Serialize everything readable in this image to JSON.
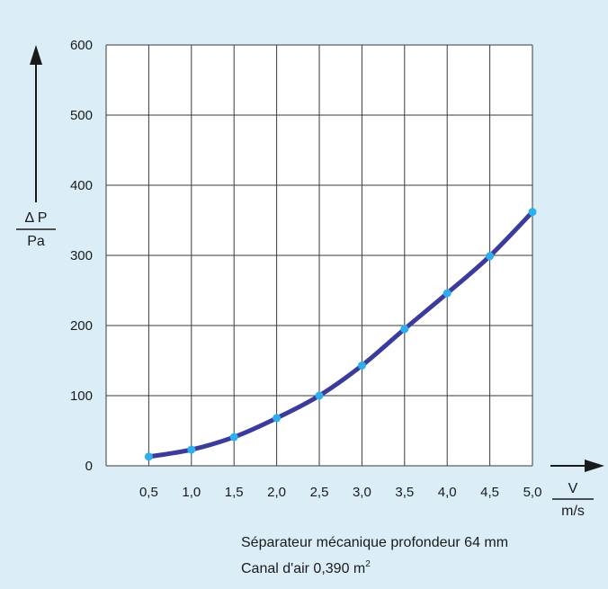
{
  "chart_data": {
    "type": "line",
    "title": "",
    "xlabel_top": "V",
    "xlabel_bottom": "m/s",
    "ylabel_top": "Δ P",
    "ylabel_bottom": "Pa",
    "x": [
      0.5,
      1.0,
      1.5,
      2.0,
      2.5,
      3.0,
      3.5,
      4.0,
      4.5,
      5.0
    ],
    "series": [
      {
        "values": [
          13,
          23,
          41,
          68,
          100,
          143,
          195,
          246,
          299,
          362
        ]
      }
    ],
    "xlim": [
      0,
      5.0
    ],
    "ylim": [
      0,
      600
    ],
    "x_ticks": [
      "0,5",
      "1,0",
      "1,5",
      "2,0",
      "2,5",
      "3,0",
      "3,5",
      "4,0",
      "4,5",
      "5,0"
    ],
    "y_ticks": [
      "0",
      "100",
      "200",
      "300",
      "400",
      "500",
      "600"
    ],
    "grid": true,
    "line_color": "#3a3aa0",
    "marker_color": "#2ab0ee"
  },
  "caption": {
    "line1": "Séparateur mécanique profondeur 64 mm",
    "line2_prefix": "Canal d'air 0,390 m",
    "line2_sup": "2"
  }
}
